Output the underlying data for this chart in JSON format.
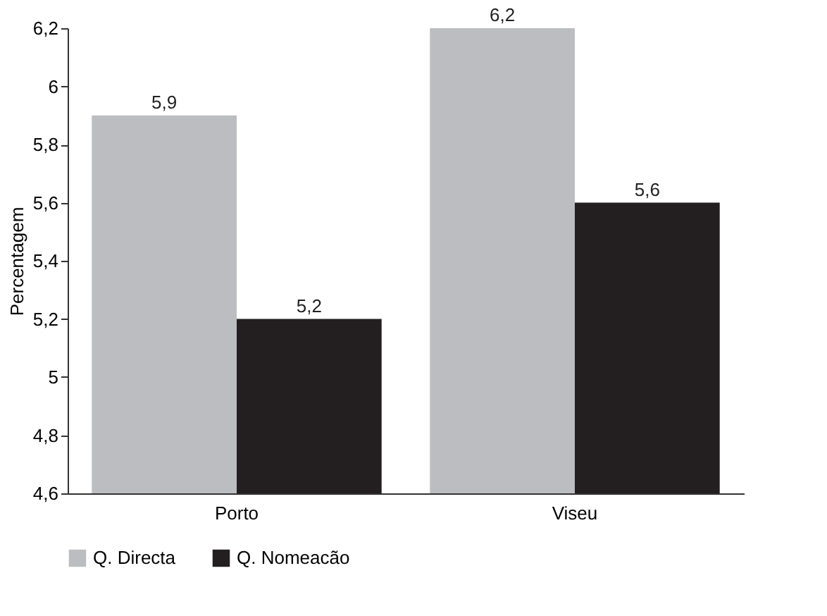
{
  "chart_data": {
    "type": "bar",
    "ylabel": "Percentagem",
    "categories": [
      "Porto",
      "Viseu"
    ],
    "series": [
      {
        "name": "Q. Directa",
        "color": "#bcbdc0",
        "values": [
          5.9,
          6.2
        ],
        "value_labels": [
          "5,9",
          "6,2"
        ]
      },
      {
        "name": "Q. Nomeacão",
        "color": "#231f20",
        "values": [
          5.2,
          5.6
        ],
        "value_labels": [
          "5,2",
          "5,6"
        ]
      }
    ],
    "ylim": [
      4.6,
      6.2
    ],
    "yticks": [
      {
        "value": 4.6,
        "label": "4,6"
      },
      {
        "value": 4.8,
        "label": "4,8"
      },
      {
        "value": 5,
        "label": "5"
      },
      {
        "value": 5.2,
        "label": "5,2"
      },
      {
        "value": 5.4,
        "label": "5,4"
      },
      {
        "value": 5.6,
        "label": "5,6"
      },
      {
        "value": 5.8,
        "label": "5,8"
      },
      {
        "value": 6,
        "label": "6"
      },
      {
        "value": 6.2,
        "label": "6,2"
      }
    ],
    "grid": false,
    "legend": "bottom left"
  }
}
